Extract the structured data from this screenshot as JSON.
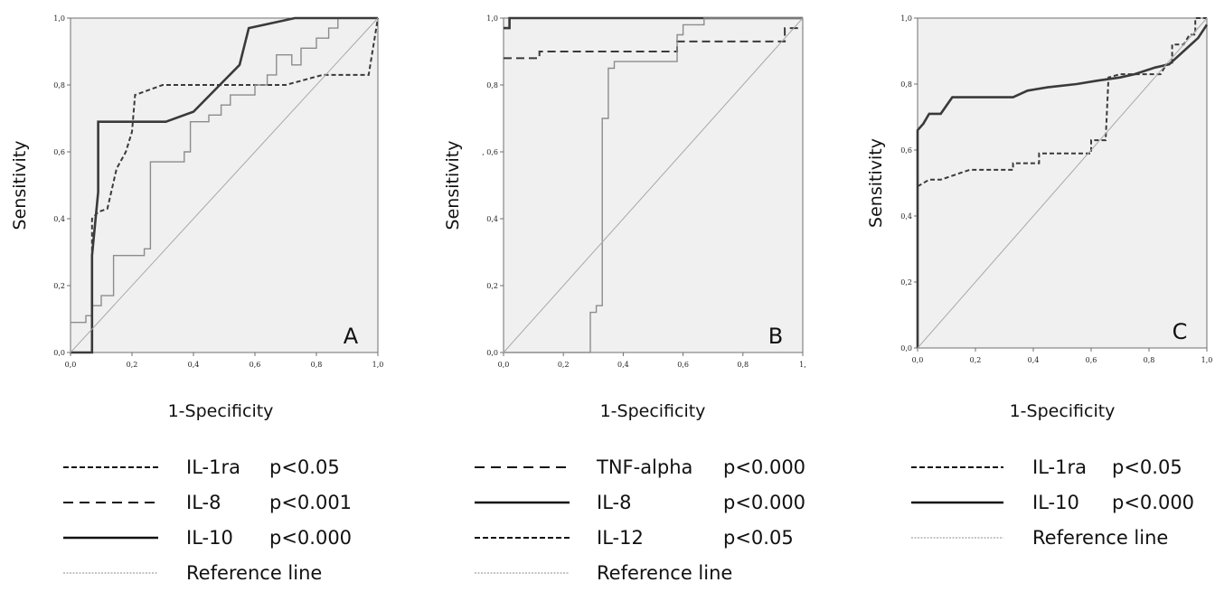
{
  "chart_data": [
    {
      "type": "line",
      "panel_label": "A",
      "xlabel": "1-Specificity",
      "ylabel": "Sensitivity",
      "xlim": [
        0,
        1
      ],
      "ylim": [
        0,
        1
      ],
      "x_ticks": [
        "0,0",
        "0,2",
        "0,4",
        "0,6",
        "0,8",
        "1,0"
      ],
      "y_ticks": [
        "0,0",
        "0,2",
        "0,4",
        "0,6",
        "0,8",
        "1,0"
      ],
      "series": [
        {
          "style": "dashed-short",
          "points": [
            [
              0,
              0
            ],
            [
              0.07,
              0
            ],
            [
              0.07,
              0.3
            ],
            [
              0.07,
              0.4
            ],
            [
              0.09,
              0.42
            ],
            [
              0.12,
              0.43
            ],
            [
              0.15,
              0.55
            ],
            [
              0.18,
              0.6
            ],
            [
              0.2,
              0.66
            ],
            [
              0.21,
              0.77
            ],
            [
              0.3,
              0.8
            ],
            [
              0.7,
              0.8
            ],
            [
              0.82,
              0.83
            ],
            [
              0.97,
              0.83
            ],
            [
              1,
              1
            ]
          ]
        },
        {
          "style": "solid-thin",
          "points": [
            [
              0,
              0.09
            ],
            [
              0.05,
              0.09
            ],
            [
              0.05,
              0.11
            ],
            [
              0.07,
              0.11
            ],
            [
              0.07,
              0.14
            ],
            [
              0.1,
              0.14
            ],
            [
              0.1,
              0.17
            ],
            [
              0.14,
              0.17
            ],
            [
              0.14,
              0.29
            ],
            [
              0.24,
              0.29
            ],
            [
              0.24,
              0.31
            ],
            [
              0.26,
              0.31
            ],
            [
              0.26,
              0.57
            ],
            [
              0.37,
              0.57
            ],
            [
              0.37,
              0.6
            ],
            [
              0.39,
              0.6
            ],
            [
              0.39,
              0.69
            ],
            [
              0.45,
              0.69
            ],
            [
              0.45,
              0.71
            ],
            [
              0.49,
              0.71
            ],
            [
              0.49,
              0.74
            ],
            [
              0.52,
              0.74
            ],
            [
              0.52,
              0.77
            ],
            [
              0.6,
              0.77
            ],
            [
              0.6,
              0.8
            ],
            [
              0.64,
              0.8
            ],
            [
              0.64,
              0.83
            ],
            [
              0.67,
              0.83
            ],
            [
              0.67,
              0.89
            ],
            [
              0.72,
              0.89
            ],
            [
              0.72,
              0.86
            ],
            [
              0.75,
              0.86
            ],
            [
              0.75,
              0.91
            ],
            [
              0.8,
              0.91
            ],
            [
              0.8,
              0.94
            ],
            [
              0.84,
              0.94
            ],
            [
              0.84,
              0.97
            ],
            [
              0.87,
              0.97
            ],
            [
              0.87,
              1
            ],
            [
              1,
              1
            ]
          ]
        },
        {
          "style": "solid-thick",
          "points": [
            [
              0,
              0
            ],
            [
              0.07,
              0
            ],
            [
              0.07,
              0.29
            ],
            [
              0.09,
              0.48
            ],
            [
              0.09,
              0.69
            ],
            [
              0.31,
              0.69
            ],
            [
              0.4,
              0.72
            ],
            [
              0.55,
              0.86
            ],
            [
              0.58,
              0.97
            ],
            [
              0.73,
              1
            ],
            [
              1,
              1
            ]
          ]
        },
        {
          "style": "reference",
          "points": [
            [
              0,
              0
            ],
            [
              1,
              1
            ]
          ]
        }
      ],
      "legend": [
        {
          "style": "dashed-short",
          "name": "IL-1ra",
          "p": "p<0.05"
        },
        {
          "style": "dashed-long",
          "name": "IL-8",
          "p": "p<0.001"
        },
        {
          "style": "solid-thick",
          "name": "IL-10",
          "p": "p<0.000"
        },
        {
          "style": "reference",
          "name": "Reference line",
          "p": ""
        }
      ]
    },
    {
      "type": "line",
      "panel_label": "B",
      "xlabel": "1-Specificity",
      "ylabel": "Sensitivity",
      "xlim": [
        0,
        1
      ],
      "ylim": [
        0,
        1
      ],
      "x_ticks": [
        "0,0",
        "0,2",
        "0,4",
        "0,6",
        "0,8",
        "1,"
      ],
      "y_ticks": [
        "0,0",
        "0,2",
        "0,4",
        ", 0,6",
        "0,8",
        "1,0"
      ],
      "series": [
        {
          "style": "solid-thick",
          "points": [
            [
              0,
              0.97
            ],
            [
              0.02,
              0.97
            ],
            [
              0.02,
              1
            ],
            [
              1,
              1
            ]
          ]
        },
        {
          "style": "dashed-long",
          "points": [
            [
              0,
              0.88
            ],
            [
              0.12,
              0.88
            ],
            [
              0.12,
              0.9
            ],
            [
              0.58,
              0.9
            ],
            [
              0.58,
              0.93
            ],
            [
              0.94,
              0.93
            ],
            [
              0.94,
              0.97
            ],
            [
              1,
              0.97
            ]
          ]
        },
        {
          "style": "solid-thin",
          "points": [
            [
              0,
              0
            ],
            [
              0.29,
              0
            ],
            [
              0.29,
              0.12
            ],
            [
              0.31,
              0.12
            ],
            [
              0.31,
              0.14
            ],
            [
              0.33,
              0.14
            ],
            [
              0.33,
              0.7
            ],
            [
              0.35,
              0.7
            ],
            [
              0.35,
              0.85
            ],
            [
              0.37,
              0.85
            ],
            [
              0.37,
              0.87
            ],
            [
              0.58,
              0.87
            ],
            [
              0.58,
              0.95
            ],
            [
              0.6,
              0.95
            ],
            [
              0.6,
              0.98
            ],
            [
              0.67,
              0.98
            ],
            [
              0.67,
              1
            ],
            [
              1,
              1
            ]
          ]
        },
        {
          "style": "reference",
          "points": [
            [
              0,
              0
            ],
            [
              1,
              1
            ]
          ]
        }
      ],
      "legend": [
        {
          "style": "dashed-long",
          "name": "TNF-alpha",
          "p": "p<0.000"
        },
        {
          "style": "solid-thick",
          "name": "IL-8",
          "p": "p<0.000"
        },
        {
          "style": "dashed-short",
          "name": "IL-12",
          "p": "p<0.05"
        },
        {
          "style": "reference",
          "name": "Reference line",
          "p": ""
        }
      ]
    },
    {
      "type": "line",
      "panel_label": "C",
      "xlabel": "1-Specificity",
      "ylabel": "Sensitivity",
      "xlim": [
        0,
        1
      ],
      "ylim": [
        0,
        1
      ],
      "x_ticks": [
        "0,0",
        "0,2",
        "0,4",
        "0,6",
        "0,8",
        "1,0"
      ],
      "y_ticks": [
        "0,0",
        "0,2",
        "0,4",
        "0,6",
        "0,8",
        "1,0"
      ],
      "series": [
        {
          "style": "solid-thick",
          "points": [
            [
              0,
              0
            ],
            [
              0,
              0.66
            ],
            [
              0.02,
              0.68
            ],
            [
              0.04,
              0.71
            ],
            [
              0.08,
              0.71
            ],
            [
              0.12,
              0.76
            ],
            [
              0.33,
              0.76
            ],
            [
              0.38,
              0.78
            ],
            [
              0.45,
              0.79
            ],
            [
              0.55,
              0.8
            ],
            [
              0.62,
              0.81
            ],
            [
              0.7,
              0.82
            ],
            [
              0.75,
              0.83
            ],
            [
              0.82,
              0.85
            ],
            [
              0.87,
              0.86
            ],
            [
              0.92,
              0.9
            ],
            [
              0.97,
              0.94
            ],
            [
              1,
              0.98
            ]
          ]
        },
        {
          "style": "dashed-short",
          "points": [
            [
              0,
              0.49
            ],
            [
              0.04,
              0.51
            ],
            [
              0.08,
              0.51
            ],
            [
              0.18,
              0.54
            ],
            [
              0.33,
              0.54
            ],
            [
              0.33,
              0.56
            ],
            [
              0.42,
              0.56
            ],
            [
              0.42,
              0.59
            ],
            [
              0.6,
              0.59
            ],
            [
              0.6,
              0.63
            ],
            [
              0.65,
              0.63
            ],
            [
              0.66,
              0.82
            ],
            [
              0.7,
              0.83
            ],
            [
              0.84,
              0.83
            ],
            [
              0.86,
              0.86
            ],
            [
              0.88,
              0.86
            ],
            [
              0.88,
              0.92
            ],
            [
              0.92,
              0.92
            ],
            [
              0.94,
              0.95
            ],
            [
              0.96,
              0.95
            ],
            [
              0.96,
              1
            ],
            [
              1,
              1
            ]
          ]
        },
        {
          "style": "reference",
          "points": [
            [
              0,
              0
            ],
            [
              1,
              1
            ]
          ]
        }
      ],
      "legend": [
        {
          "style": "dashed-short",
          "name": "IL-1ra",
          "p": "p<0.05"
        },
        {
          "style": "solid-thick",
          "name": "IL-10",
          "p": "p<0.000"
        },
        {
          "style": "reference",
          "name": "Reference line",
          "p": ""
        }
      ]
    }
  ],
  "colors": {
    "plot_background": "#f0f0f0",
    "frame": "#6f6f6f",
    "series_dark": "#3a3a3a",
    "series_thin": "#8c8c8c",
    "reference": "#a8a8a8"
  }
}
